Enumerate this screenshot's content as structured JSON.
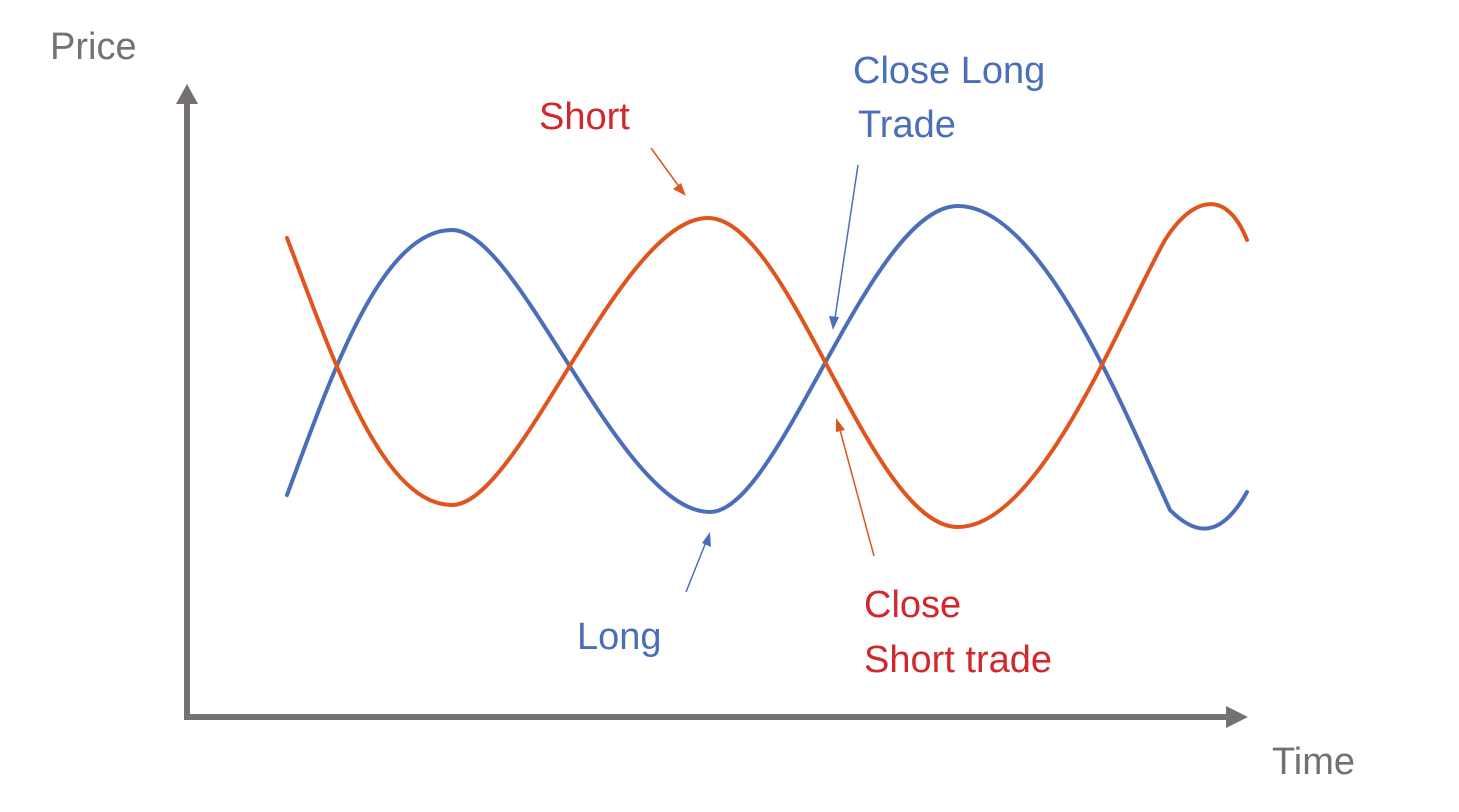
{
  "axes": {
    "y_label": "Price",
    "x_label": "Time",
    "color": "#767171"
  },
  "colors": {
    "long_curve": "#4A6FB8",
    "short_curve": "#E0541E",
    "short_text": "#D0282C",
    "long_text": "#4A6FB8",
    "arrow_short": "#E0541E",
    "arrow_long": "#4A6FB8"
  },
  "annotations": {
    "short": "Short",
    "long": "Long",
    "close_long_line1": "Close Long",
    "close_long_line2": "Trade",
    "close_short_line1": "Close",
    "close_short_line2": "Short trade"
  }
}
